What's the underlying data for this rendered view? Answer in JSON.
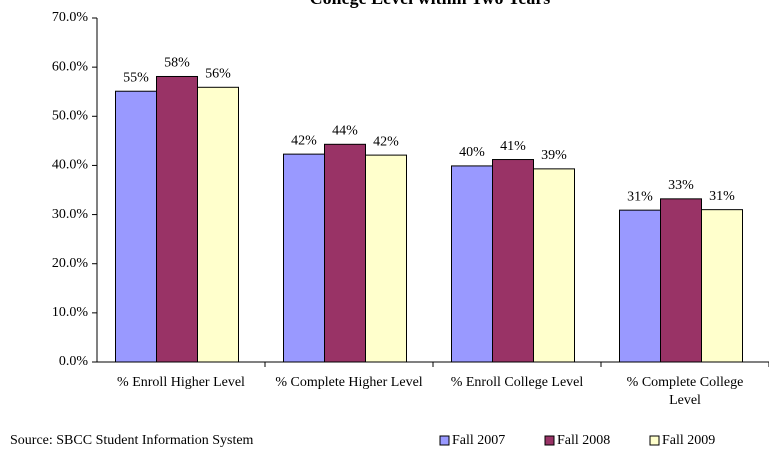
{
  "chart_data": {
    "type": "bar",
    "title": "College Level within Two Years",
    "source": "Source: SBCC Student Information System",
    "categories": [
      "% Enroll Higher Level",
      "% Complete Higher Level",
      "% Enroll College Level",
      "% Complete College Level"
    ],
    "series": [
      {
        "name": "Fall 2007",
        "color": "#9999ff",
        "values": [
          55.1,
          42.3,
          39.9,
          30.9
        ],
        "value_labels": [
          "55%",
          "42%",
          "40%",
          "31%"
        ]
      },
      {
        "name": "Fall 2008",
        "color": "#993366",
        "values": [
          58.1,
          44.3,
          41.2,
          33.2
        ],
        "value_labels": [
          "58%",
          "44%",
          "41%",
          "33%"
        ]
      },
      {
        "name": "Fall 2009",
        "color": "#ffffcc",
        "values": [
          55.9,
          42.1,
          39.3,
          31.0
        ],
        "value_labels": [
          "56%",
          "42%",
          "39%",
          "31%"
        ]
      }
    ],
    "ylim": [
      0,
      70
    ],
    "yticks": [
      {
        "value": 0,
        "label": "0.0%"
      },
      {
        "value": 10,
        "label": "10.0%"
      },
      {
        "value": 20,
        "label": "20.0%"
      },
      {
        "value": 30,
        "label": "30.0%"
      },
      {
        "value": 40,
        "label": "40.0%"
      },
      {
        "value": 50,
        "label": "50.0%"
      },
      {
        "value": 60,
        "label": "60.0%"
      },
      {
        "value": 70,
        "label": "70.0%"
      }
    ],
    "grid": false,
    "legend": "bottom-right"
  }
}
